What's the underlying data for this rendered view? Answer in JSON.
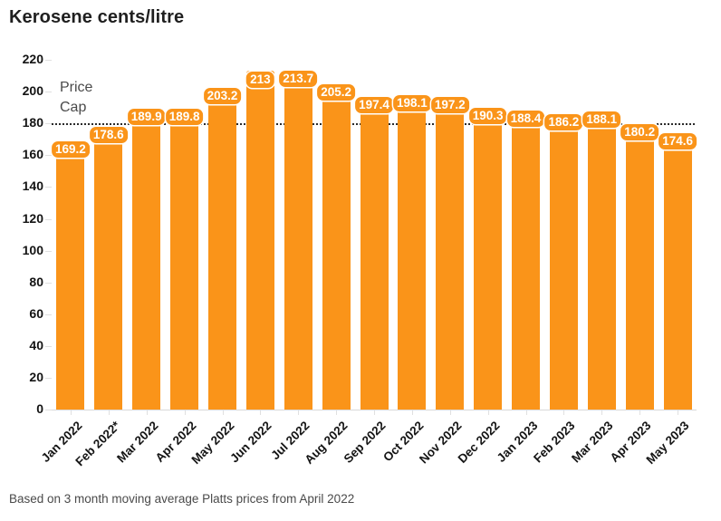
{
  "header": {
    "title": "Kerosene cents/litre"
  },
  "price_cap": {
    "line1": "Price",
    "line2": "Cap"
  },
  "footer": {
    "note": "Based on 3 month moving average Platts prices from April 2022"
  },
  "colors": {
    "bar": "#fa9419",
    "label_text": "#ffffff",
    "cap_line": "#2b2b2b",
    "cap_text": "#4a4a4a",
    "axis_text": "#141414",
    "tick": "#e0e0e0",
    "title_text": "#1f1f1f",
    "footer_text": "#4a4a4a"
  },
  "chart_data": {
    "type": "bar",
    "title": "Kerosene cents/litre",
    "categories": [
      "Jan 2022",
      "Feb 2022*",
      "Mar 2022",
      "Apr 2022",
      "May 2022",
      "Jun 2022",
      "Jul 2022",
      "Aug 2022",
      "Sep 2022",
      "Oct 2022",
      "Nov 2022",
      "Dec 2022",
      "Jan 2023",
      "Feb 2023",
      "Mar 2023",
      "Apr 2023",
      "May 2023"
    ],
    "values": [
      169.2,
      178.6,
      189.9,
      189.8,
      203.2,
      213,
      213.7,
      205.2,
      197.4,
      198.1,
      197.2,
      190.3,
      188.4,
      186.2,
      188.1,
      180.2,
      174.6
    ],
    "data_labels": [
      "169.2",
      "178.6",
      "189.9",
      "189.8",
      "203.2",
      "213",
      "213.7",
      "205.2",
      "197.4",
      "198.1",
      "197.2",
      "190.3",
      "188.4",
      "186.2",
      "188.1",
      "180.2",
      "174.6"
    ],
    "xlabel": "",
    "ylabel": "",
    "ylim": [
      0,
      220
    ],
    "yticks": [
      0,
      20,
      40,
      60,
      80,
      100,
      120,
      140,
      160,
      180,
      200,
      220
    ],
    "grid": false,
    "legend": false,
    "annotations": [
      {
        "text": "Price Cap",
        "y": 180,
        "style": "dotted-horizontal-line"
      }
    ],
    "bar_color": "#fa9419",
    "note": "Based on 3 month moving average Platts prices from April 2022"
  }
}
